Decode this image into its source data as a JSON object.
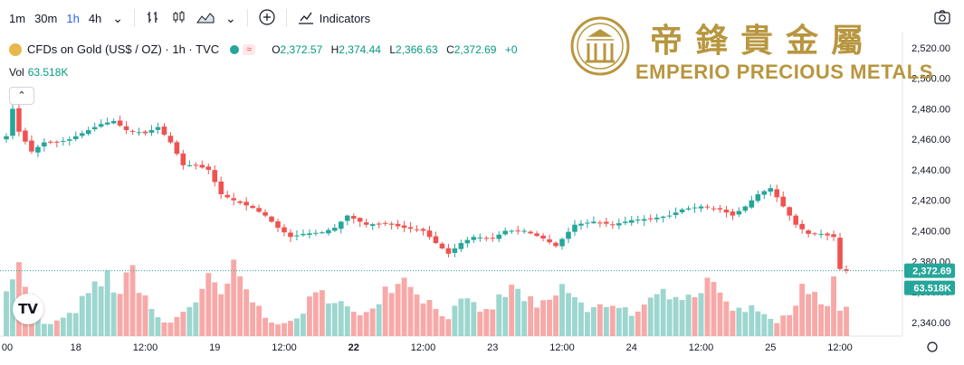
{
  "toolbar": {
    "timeframes": [
      "1m",
      "30m",
      "1h",
      "4h"
    ],
    "active_timeframe": "1h",
    "indicators_label": "Indicators"
  },
  "legend": {
    "symbol": "CFDs on Gold (US$ / OZ) · 1h · TVC",
    "open_key": "O",
    "open": "2,372.57",
    "high_key": "H",
    "high": "2,374.44",
    "low_key": "L",
    "low": "2,366.63",
    "close_key": "C",
    "close": "2,372.69",
    "change": "+0",
    "pill_icon": "≈"
  },
  "volume": {
    "label": "Vol",
    "value": "63.518K"
  },
  "watermark": {
    "chinese": "帝鋒貴金屬",
    "english": "EMPERIO PRECIOUS METALS"
  },
  "colors": {
    "up": "#26a69a",
    "down": "#ef5350",
    "vol_up": "#9dd6cf",
    "vol_down": "#f7a9a7",
    "gold": "#b8963f"
  },
  "chart_data": {
    "type": "candlestick",
    "y_axis": {
      "ticks": [
        2520,
        2500,
        2480,
        2460,
        2440,
        2420,
        2400,
        2380,
        2360,
        2340
      ],
      "tick_labels": [
        "2,520.00",
        "2,500.00",
        "2,480.00",
        "2,460.00",
        "2,440.00",
        "2,420.00",
        "2,400.00",
        "2,380.00",
        "2,360.00",
        "2,340.00"
      ]
    },
    "x_axis": {
      "labels": [
        "00",
        "18",
        "12:00",
        "19",
        "12:00",
        "22",
        "12:00",
        "23",
        "12:00",
        "24",
        "12:00",
        "25",
        "12:00"
      ],
      "label_bar_index": [
        0,
        11,
        22,
        33,
        44,
        55,
        66,
        77,
        88,
        99,
        110,
        121,
        132
      ],
      "bold": [
        false,
        false,
        false,
        false,
        false,
        true,
        false,
        false,
        false,
        false,
        false,
        false,
        false
      ]
    },
    "last_price_label": "2,372.69",
    "volume_label": "63.518K",
    "close_path_anchors": [
      [
        0,
        2462
      ],
      [
        1,
        2480
      ],
      [
        2,
        2465
      ],
      [
        4,
        2452
      ],
      [
        6,
        2458
      ],
      [
        8,
        2458
      ],
      [
        10,
        2460
      ],
      [
        13,
        2466
      ],
      [
        15,
        2470
      ],
      [
        17,
        2472
      ],
      [
        19,
        2466
      ],
      [
        22,
        2464
      ],
      [
        24,
        2468
      ],
      [
        26,
        2458
      ],
      [
        28,
        2443
      ],
      [
        30,
        2443
      ],
      [
        32,
        2440
      ],
      [
        34,
        2424
      ],
      [
        36,
        2420
      ],
      [
        39,
        2415
      ],
      [
        41,
        2410
      ],
      [
        43,
        2402
      ],
      [
        45,
        2396
      ],
      [
        47,
        2398
      ],
      [
        50,
        2399
      ],
      [
        52,
        2402
      ],
      [
        54,
        2410
      ],
      [
        57,
        2404
      ],
      [
        60,
        2405
      ],
      [
        63,
        2402
      ],
      [
        66,
        2400
      ],
      [
        68,
        2392
      ],
      [
        70,
        2385
      ],
      [
        72,
        2392
      ],
      [
        74,
        2396
      ],
      [
        77,
        2395
      ],
      [
        79,
        2400
      ],
      [
        82,
        2400
      ],
      [
        85,
        2395
      ],
      [
        87,
        2390
      ],
      [
        90,
        2404
      ],
      [
        93,
        2406
      ],
      [
        96,
        2404
      ],
      [
        99,
        2407
      ],
      [
        102,
        2408
      ],
      [
        105,
        2410
      ],
      [
        107,
        2414
      ],
      [
        110,
        2416
      ],
      [
        113,
        2414
      ],
      [
        115,
        2410
      ],
      [
        117,
        2416
      ],
      [
        119,
        2424
      ],
      [
        121,
        2428
      ],
      [
        123,
        2416
      ],
      [
        125,
        2404
      ],
      [
        127,
        2398
      ],
      [
        129,
        2398
      ],
      [
        131,
        2396
      ],
      [
        132,
        2375
      ],
      [
        134,
        2372.69
      ]
    ],
    "volume_anchors": [
      [
        0,
        62
      ],
      [
        2,
        75
      ],
      [
        4,
        42
      ],
      [
        6,
        12
      ],
      [
        8,
        16
      ],
      [
        10,
        22
      ],
      [
        12,
        38
      ],
      [
        14,
        52
      ],
      [
        16,
        64
      ],
      [
        18,
        48
      ],
      [
        20,
        72
      ],
      [
        22,
        44
      ],
      [
        24,
        18
      ],
      [
        26,
        14
      ],
      [
        28,
        28
      ],
      [
        30,
        40
      ],
      [
        32,
        60
      ],
      [
        34,
        44
      ],
      [
        36,
        72
      ],
      [
        38,
        50
      ],
      [
        40,
        30
      ],
      [
        42,
        18
      ],
      [
        44,
        12
      ],
      [
        46,
        20
      ],
      [
        48,
        38
      ],
      [
        50,
        46
      ],
      [
        52,
        44
      ],
      [
        54,
        30
      ],
      [
        56,
        20
      ],
      [
        58,
        36
      ],
      [
        60,
        52
      ],
      [
        62,
        66
      ],
      [
        64,
        60
      ],
      [
        66,
        44
      ],
      [
        68,
        30
      ],
      [
        70,
        22
      ],
      [
        72,
        36
      ],
      [
        74,
        34
      ],
      [
        76,
        26
      ],
      [
        78,
        40
      ],
      [
        80,
        52
      ],
      [
        82,
        44
      ],
      [
        84,
        30
      ],
      [
        86,
        38
      ],
      [
        88,
        52
      ],
      [
        90,
        44
      ],
      [
        92,
        26
      ],
      [
        94,
        32
      ],
      [
        96,
        38
      ],
      [
        98,
        30
      ],
      [
        100,
        24
      ],
      [
        102,
        36
      ],
      [
        104,
        48
      ],
      [
        106,
        52
      ],
      [
        108,
        44
      ],
      [
        110,
        54
      ],
      [
        111,
        72
      ],
      [
        112,
        50
      ],
      [
        114,
        40
      ],
      [
        116,
        28
      ],
      [
        118,
        34
      ],
      [
        120,
        28
      ],
      [
        122,
        14
      ],
      [
        124,
        24
      ],
      [
        126,
        60
      ],
      [
        128,
        44
      ],
      [
        130,
        28
      ],
      [
        131,
        62
      ],
      [
        132,
        30
      ],
      [
        134,
        35
      ]
    ],
    "n_bars": 134,
    "ylim": [
      2331,
      2530
    ]
  }
}
